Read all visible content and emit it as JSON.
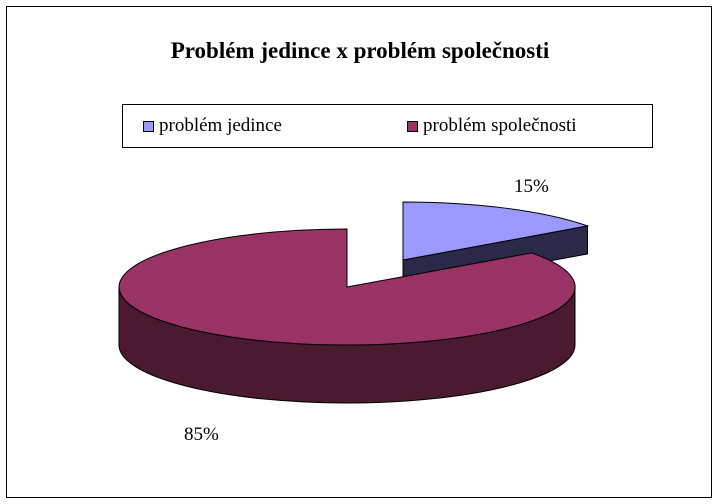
{
  "colors": {
    "jedince_top": "#9999ff",
    "jedince_side": "#2a2a48",
    "spolecnosti_top": "#993366",
    "spolecnosti_side": "#4a1a30"
  },
  "chart_data": {
    "type": "pie",
    "title": "Problém jedince x problém společnosti",
    "legend_position": "top",
    "series": [
      {
        "name": "problém jedince",
        "value": 15,
        "label": "15%",
        "color": "#9999ff"
      },
      {
        "name": "problém společnosti",
        "value": 85,
        "label": "85%",
        "color": "#993366"
      }
    ],
    "three_d": true,
    "exploded": [
      "problém jedince"
    ]
  }
}
